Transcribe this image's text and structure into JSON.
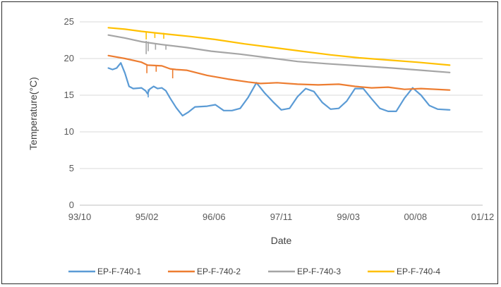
{
  "chart_data": {
    "type": "line",
    "xlabel": "Date",
    "ylabel": "Temperature(°C)",
    "xlim": [
      "1993-10-01",
      "2001-12-01"
    ],
    "ylim": [
      0,
      25
    ],
    "x_ticks": [
      "93/10",
      "95/02",
      "96/06",
      "97/11",
      "99/03",
      "00/08",
      "01/12"
    ],
    "y_ticks": [
      0,
      5,
      10,
      15,
      20,
      25
    ],
    "grid": "horizontal",
    "legend_position": "bottom",
    "series": [
      {
        "name": "EP-F-740-1",
        "color": "#5B9BD5",
        "x": [
          "1994-05-01",
          "1994-06-01",
          "1994-07-01",
          "1994-08-01",
          "1994-09-01",
          "1994-10-01",
          "1994-11-01",
          "1995-01-01",
          "1995-02-01",
          "1995-02-15",
          "1995-03-01",
          "1995-04-01",
          "1995-05-01",
          "1995-06-01",
          "1995-07-01",
          "1995-08-01",
          "1995-09-15",
          "1995-11-01",
          "1995-12-15",
          "1996-02-01",
          "1996-05-01",
          "1996-07-01",
          "1996-09-01",
          "1996-11-01",
          "1997-01-01",
          "1997-03-01",
          "1997-05-01",
          "1997-07-01",
          "1997-09-01",
          "1997-11-01",
          "1998-01-01",
          "1998-03-01",
          "1998-05-01",
          "1998-07-01",
          "1998-09-01",
          "1998-11-01",
          "1999-01-01",
          "1999-03-01",
          "1999-05-01",
          "1999-07-01",
          "1999-09-01",
          "1999-11-01",
          "2000-01-01",
          "2000-03-01",
          "2000-05-01",
          "2000-07-01",
          "2000-09-01",
          "2000-11-01",
          "2001-01-01",
          "2001-04-01"
        ],
        "y": [
          18.7,
          18.5,
          18.7,
          19.4,
          18.0,
          16.2,
          15.9,
          16.0,
          15.6,
          15.2,
          15.8,
          16.2,
          15.9,
          16.0,
          15.6,
          14.6,
          13.3,
          12.2,
          12.7,
          13.4,
          13.5,
          13.7,
          12.9,
          12.9,
          13.2,
          14.7,
          16.7,
          15.3,
          14.1,
          13.0,
          13.2,
          14.8,
          15.9,
          15.5,
          14.0,
          13.1,
          13.2,
          14.2,
          15.9,
          15.9,
          14.5,
          13.2,
          12.8,
          12.8,
          14.6,
          16.0,
          15.0,
          13.6,
          13.1,
          13.0
        ]
      },
      {
        "name": "EP-F-740-2",
        "color": "#ED7D31",
        "x": [
          "1994-05-01",
          "1994-09-01",
          "1995-01-01",
          "1995-02-15",
          "1995-06-01",
          "1995-08-01",
          "1995-09-15",
          "1995-12-01",
          "1996-05-01",
          "1996-10-01",
          "1997-03-01",
          "1997-06-01",
          "1997-10-01",
          "1998-03-01",
          "1998-08-01",
          "1999-01-01",
          "1999-05-01",
          "1999-09-01",
          "2000-01-01",
          "2000-05-01",
          "2000-09-01",
          "2001-04-01"
        ],
        "y": [
          20.4,
          20.0,
          19.5,
          19.1,
          19.0,
          18.6,
          18.5,
          18.4,
          17.7,
          17.2,
          16.8,
          16.6,
          16.7,
          16.5,
          16.4,
          16.5,
          16.2,
          16.0,
          16.1,
          15.8,
          15.9,
          15.7
        ]
      },
      {
        "name": "EP-F-740-3",
        "color": "#A5A5A5",
        "x": [
          "1994-05-01",
          "1994-09-01",
          "1995-01-01",
          "1995-06-01",
          "1995-12-01",
          "1996-06-01",
          "1997-01-01",
          "1997-08-01",
          "1998-03-01",
          "1998-10-01",
          "1999-06-01",
          "2000-02-01",
          "2000-09-01",
          "2001-04-01"
        ],
        "y": [
          23.2,
          22.8,
          22.3,
          21.9,
          21.5,
          21.0,
          20.6,
          20.1,
          19.6,
          19.3,
          19.0,
          18.7,
          18.4,
          18.1
        ]
      },
      {
        "name": "EP-F-740-4",
        "color": "#FFC000",
        "x": [
          "1994-05-01",
          "1994-09-01",
          "1995-01-01",
          "1995-06-01",
          "1996-01-01",
          "1996-07-01",
          "1997-02-01",
          "1997-09-01",
          "1998-04-01",
          "1998-11-01",
          "1999-06-01",
          "2000-01-01",
          "2000-08-01",
          "2001-04-01"
        ],
        "y": [
          24.2,
          24.0,
          23.7,
          23.4,
          23.0,
          22.6,
          22.0,
          21.5,
          21.0,
          20.5,
          20.1,
          19.8,
          19.5,
          19.1
        ]
      }
    ]
  }
}
